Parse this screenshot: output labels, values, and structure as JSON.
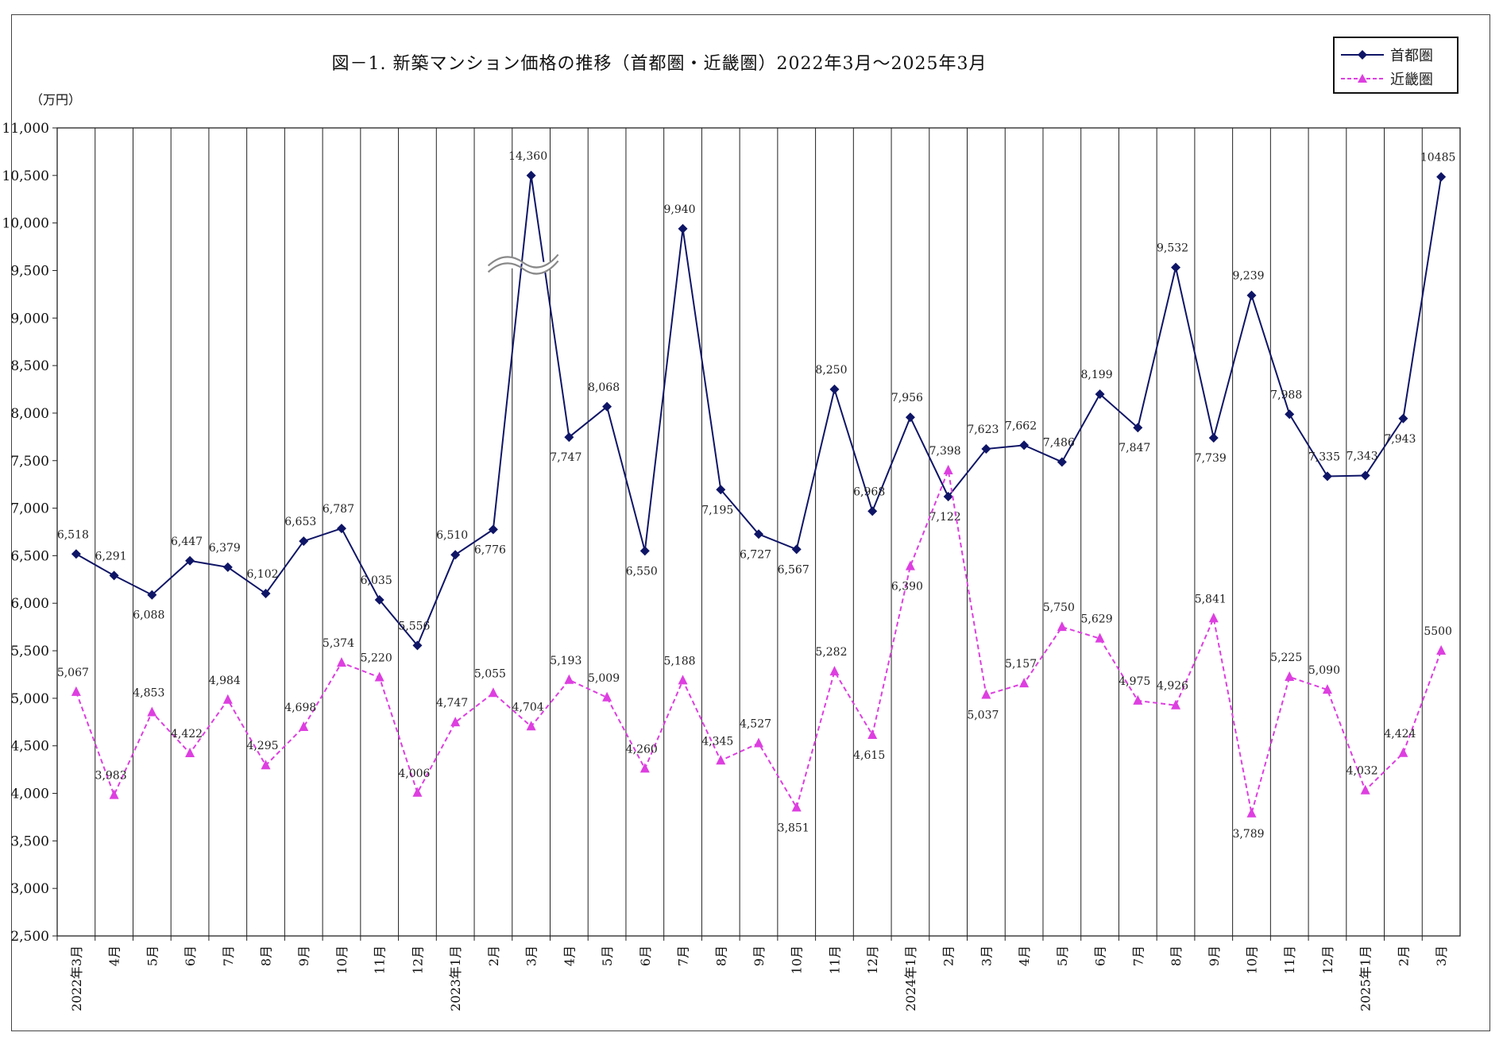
{
  "chart_title": "図－1. 新築マンション価格の推移（首都圏・近畿圏）2022年3月～2025年3月",
  "unit_label": "（万円）",
  "legend": [
    {
      "name": "首都圏",
      "color": "#0f1566",
      "marker": "diamond",
      "style": "solid"
    },
    {
      "name": "近畿圏",
      "color": "#dd3fe0",
      "marker": "triangle",
      "style": "dashed"
    }
  ],
  "chart_data": {
    "type": "line",
    "title": "図－1. 新築マンション価格の推移（首都圏・近畿圏）2022年3月～2025年3月",
    "ylabel": "（万円）",
    "ylim": [
      2500,
      11000
    ],
    "y_ticks": [
      "2,500",
      "3,000",
      "3,500",
      "4,000",
      "4,500",
      "5,000",
      "5,500",
      "6,000",
      "6,500",
      "7,000",
      "7,500",
      "8,000",
      "8,500",
      "9,000",
      "9,500",
      "10,000",
      "10,500",
      "11,000"
    ],
    "y_tick_values": [
      2500,
      3000,
      3500,
      4000,
      4500,
      5000,
      5500,
      6000,
      6500,
      7000,
      7500,
      8000,
      8500,
      9000,
      9500,
      10000,
      10500,
      11000
    ],
    "grid": "vertical",
    "legend_position": "top-right",
    "axis_break": {
      "series": "首都圏",
      "category_index": 12,
      "plotted_value": 10500,
      "label": "14,360"
    },
    "categories": [
      "2022年3月",
      "4月",
      "5月",
      "6月",
      "7月",
      "8月",
      "9月",
      "10月",
      "11月",
      "12月",
      "2023年1月",
      "2月",
      "3月",
      "4月",
      "5月",
      "6月",
      "7月",
      "8月",
      "9月",
      "10月",
      "11月",
      "12月",
      "2024年1月",
      "2月",
      "3月",
      "4月",
      "5月",
      "6月",
      "7月",
      "8月",
      "9月",
      "10月",
      "11月",
      "12月",
      "2025年1月",
      "2月",
      "3月"
    ],
    "series": [
      {
        "name": "首都圏",
        "values": [
          6518,
          6291,
          6088,
          6447,
          6379,
          6102,
          6653,
          6787,
          6035,
          5556,
          6510,
          6776,
          14360,
          7747,
          8068,
          6550,
          9940,
          7195,
          6727,
          6567,
          8250,
          6968,
          7956,
          7122,
          7623,
          7662,
          7486,
          8199,
          7847,
          9532,
          7739,
          9239,
          7988,
          7335,
          7343,
          7943,
          10485
        ],
        "labels": [
          "6,518",
          "6,291",
          "6,088",
          "6,447",
          "6,379",
          "6,102",
          "6,653",
          "6,787",
          "6,035",
          "5,556",
          "6,510",
          "6,776",
          "14,360",
          "7,747",
          "8,068",
          "6,550",
          "9,940",
          "7,195",
          "6,727",
          "6,567",
          "8,250",
          "6,968",
          "7,956",
          "7,122",
          "7,623",
          "7,662",
          "7,486",
          "8,199",
          "7,847",
          "9,532",
          "7,739",
          "9,239",
          "7,988",
          "7,335",
          "7,343",
          "7,943",
          "10485"
        ],
        "label_pos": [
          "a",
          "a",
          "b",
          "a",
          "a",
          "a",
          "a",
          "a",
          "a",
          "a",
          "a",
          "b",
          "a",
          "b",
          "a",
          "b",
          "a",
          "b",
          "b",
          "b",
          "a",
          "a",
          "a",
          "b",
          "a",
          "a",
          "a",
          "a",
          "b",
          "a",
          "b",
          "a",
          "a",
          "a",
          "a",
          "b",
          "a"
        ]
      },
      {
        "name": "近畿圏",
        "values": [
          5067,
          3983,
          4853,
          4422,
          4984,
          4295,
          4698,
          5374,
          5220,
          4006,
          4747,
          5055,
          4704,
          5193,
          5009,
          4260,
          5188,
          4345,
          4527,
          3851,
          5282,
          4615,
          6390,
          7398,
          5037,
          5157,
          5750,
          5629,
          4975,
          4926,
          5841,
          3789,
          5225,
          5090,
          4032,
          4424,
          5500
        ],
        "labels": [
          "5,067",
          "3,983",
          "4,853",
          "4,422",
          "4,984",
          "4,295",
          "4,698",
          "5,374",
          "5,220",
          "4,006",
          "4,747",
          "5,055",
          "4,704",
          "5,193",
          "5,009",
          "4,260",
          "5,188",
          "4,345",
          "4,527",
          "3,851",
          "5,282",
          "4,615",
          "6,390",
          "7,398",
          "5,037",
          "5,157",
          "5,750",
          "5,629",
          "4,975",
          "4,926",
          "5,841",
          "3,789",
          "5,225",
          "5,090",
          "4,032",
          "4,424",
          "5500"
        ],
        "label_pos": [
          "a",
          "a",
          "a",
          "a",
          "a",
          "a",
          "a",
          "a",
          "a",
          "a",
          "a",
          "a",
          "a",
          "a",
          "a",
          "a",
          "a",
          "a",
          "a",
          "b",
          "a",
          "b",
          "b",
          "a",
          "b",
          "a",
          "a",
          "a",
          "a",
          "a",
          "a",
          "b",
          "a",
          "a",
          "a",
          "a",
          "a"
        ]
      }
    ]
  }
}
